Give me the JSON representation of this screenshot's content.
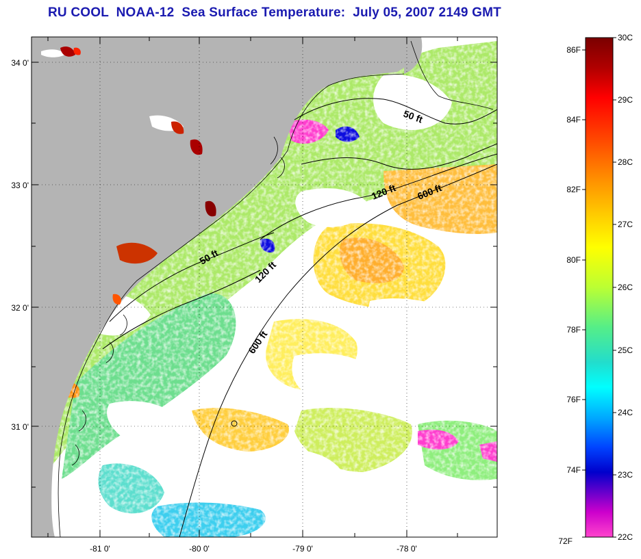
{
  "title": "RU COOL  NOAA-12  Sea Surface Temperature:  July 05, 2007 2149 GMT",
  "map": {
    "lat_labels": [
      "34 0'",
      "33 0'",
      "32 0'",
      "31 0'"
    ],
    "lon_labels": [
      "-81 0'",
      "-80 0'",
      "-79 0'",
      "-78 0'"
    ],
    "contour_labels": [
      "50 ft",
      "120 ft",
      "600 ft",
      "50 ft",
      "120 ft",
      "600 ft"
    ],
    "land_color": "#b4b4b4",
    "cloud_color": "#ffffff"
  },
  "colorbar": {
    "celsius_labels": [
      "30C",
      "29C",
      "28C",
      "27C",
      "26C",
      "25C",
      "24C",
      "23C",
      "22C"
    ],
    "fahrenheit_labels": [
      "86F",
      "84F",
      "82F",
      "80F",
      "78F",
      "76F",
      "74F",
      "72F"
    ],
    "colors": [
      "#7a0000",
      "#cc0000",
      "#ff3000",
      "#ff8800",
      "#ffcc00",
      "#ffff00",
      "#ccff33",
      "#66ee66",
      "#33ddaa",
      "#00ffff",
      "#0088ff",
      "#0000dd",
      "#8800cc",
      "#ff33cc"
    ]
  }
}
